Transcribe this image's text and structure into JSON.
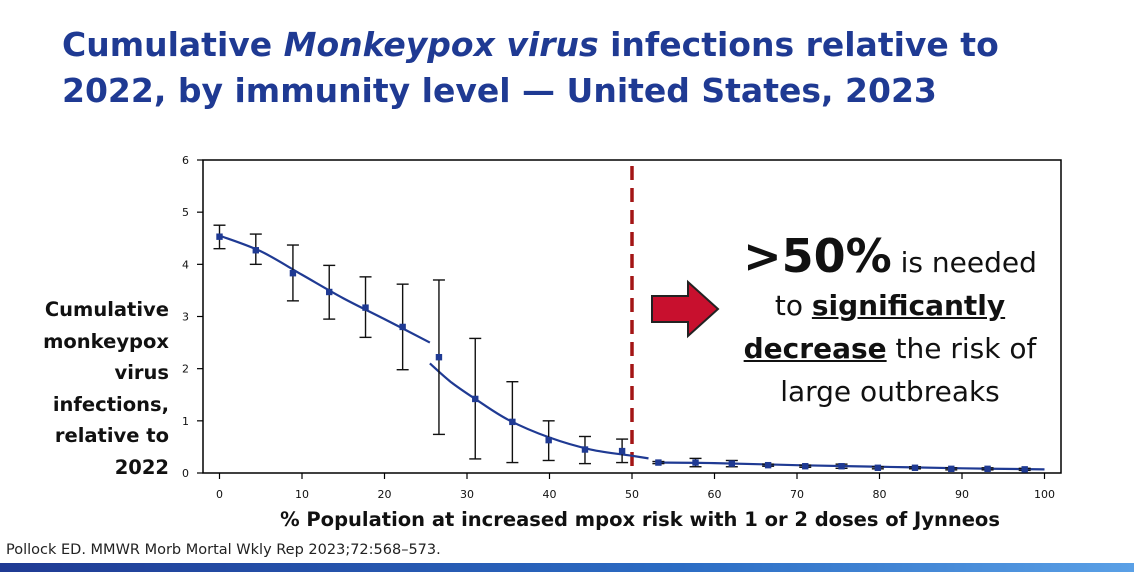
{
  "title": {
    "part1": "Cumulative ",
    "italic": "Monkeypox virus",
    "part2": " infections relative to 2022, by immunity level — United States, 2023"
  },
  "annotation": {
    "big": ">50%",
    "rest1": " is needed",
    "line2_pre": "to ",
    "line2_u": "significantly",
    "line3_u": "decrease",
    "line3_post": " the risk of",
    "line4": "large outbreaks"
  },
  "source": "Pollock ED. MMWR Morb Mortal Wkly Rep 2023;72:568–573.",
  "colors": {
    "title": "#1f3a93",
    "series": "#1f3a93",
    "threshold": "#a31515",
    "arrow": "#c8102e"
  },
  "chart_data": {
    "type": "scatter",
    "xlabel": "% Population at increased mpox risk with 1 or 2 doses of Jynneos",
    "ylabel": [
      "Cumulative",
      "monkeypox",
      "virus",
      "infections,",
      "relative to",
      "2022"
    ],
    "xlim": [
      -2,
      102
    ],
    "ylim": [
      0,
      6
    ],
    "xticks": [
      0,
      10,
      20,
      30,
      40,
      50,
      60,
      70,
      80,
      90,
      100
    ],
    "yticks": [
      0,
      1,
      2,
      3,
      4,
      5,
      6
    ],
    "threshold_x": 50,
    "points": [
      {
        "x": 0,
        "y": 4.53,
        "lo": 4.3,
        "hi": 4.75
      },
      {
        "x": 4.4,
        "y": 4.27,
        "lo": 4.0,
        "hi": 4.58
      },
      {
        "x": 8.9,
        "y": 3.83,
        "lo": 3.3,
        "hi": 4.37
      },
      {
        "x": 13.3,
        "y": 3.47,
        "lo": 2.95,
        "hi": 3.98
      },
      {
        "x": 17.7,
        "y": 3.17,
        "lo": 2.6,
        "hi": 3.76
      },
      {
        "x": 22.2,
        "y": 2.8,
        "lo": 1.98,
        "hi": 3.62
      },
      {
        "x": 26.6,
        "y": 2.22,
        "lo": 0.74,
        "hi": 3.7
      },
      {
        "x": 31.0,
        "y": 1.42,
        "lo": 0.27,
        "hi": 2.58
      },
      {
        "x": 35.5,
        "y": 0.98,
        "lo": 0.2,
        "hi": 1.75
      },
      {
        "x": 39.9,
        "y": 0.63,
        "lo": 0.24,
        "hi": 1.0
      },
      {
        "x": 44.3,
        "y": 0.45,
        "lo": 0.18,
        "hi": 0.7
      },
      {
        "x": 48.8,
        "y": 0.42,
        "lo": 0.2,
        "hi": 0.65
      },
      {
        "x": 53.2,
        "y": 0.2,
        "lo": 0.18,
        "hi": 0.22
      },
      {
        "x": 57.7,
        "y": 0.2,
        "lo": 0.12,
        "hi": 0.28
      },
      {
        "x": 62.1,
        "y": 0.18,
        "lo": 0.12,
        "hi": 0.24
      },
      {
        "x": 66.5,
        "y": 0.15,
        "lo": 0.13,
        "hi": 0.17
      },
      {
        "x": 71.0,
        "y": 0.13,
        "lo": 0.11,
        "hi": 0.15
      },
      {
        "x": 75.4,
        "y": 0.13,
        "lo": 0.09,
        "hi": 0.17
      },
      {
        "x": 79.8,
        "y": 0.1,
        "lo": 0.08,
        "hi": 0.12
      },
      {
        "x": 84.3,
        "y": 0.1,
        "lo": 0.08,
        "hi": 0.12
      },
      {
        "x": 88.7,
        "y": 0.08,
        "lo": 0.06,
        "hi": 0.1
      },
      {
        "x": 93.1,
        "y": 0.08,
        "lo": 0.06,
        "hi": 0.1
      },
      {
        "x": 97.6,
        "y": 0.07,
        "lo": 0.05,
        "hi": 0.09
      }
    ],
    "curve_segments": [
      [
        [
          0,
          4.55
        ],
        [
          5,
          4.25
        ],
        [
          10,
          3.8
        ],
        [
          15,
          3.35
        ],
        [
          20,
          2.95
        ],
        [
          25.5,
          2.5
        ]
      ],
      [
        [
          25.5,
          2.1
        ],
        [
          28,
          1.75
        ],
        [
          31,
          1.42
        ],
        [
          35,
          1.02
        ],
        [
          40,
          0.68
        ],
        [
          45,
          0.45
        ],
        [
          50,
          0.33
        ],
        [
          52,
          0.28
        ]
      ],
      [
        [
          53,
          0.2
        ],
        [
          60,
          0.19
        ],
        [
          70,
          0.15
        ],
        [
          80,
          0.12
        ],
        [
          90,
          0.09
        ],
        [
          100,
          0.07
        ]
      ]
    ]
  }
}
